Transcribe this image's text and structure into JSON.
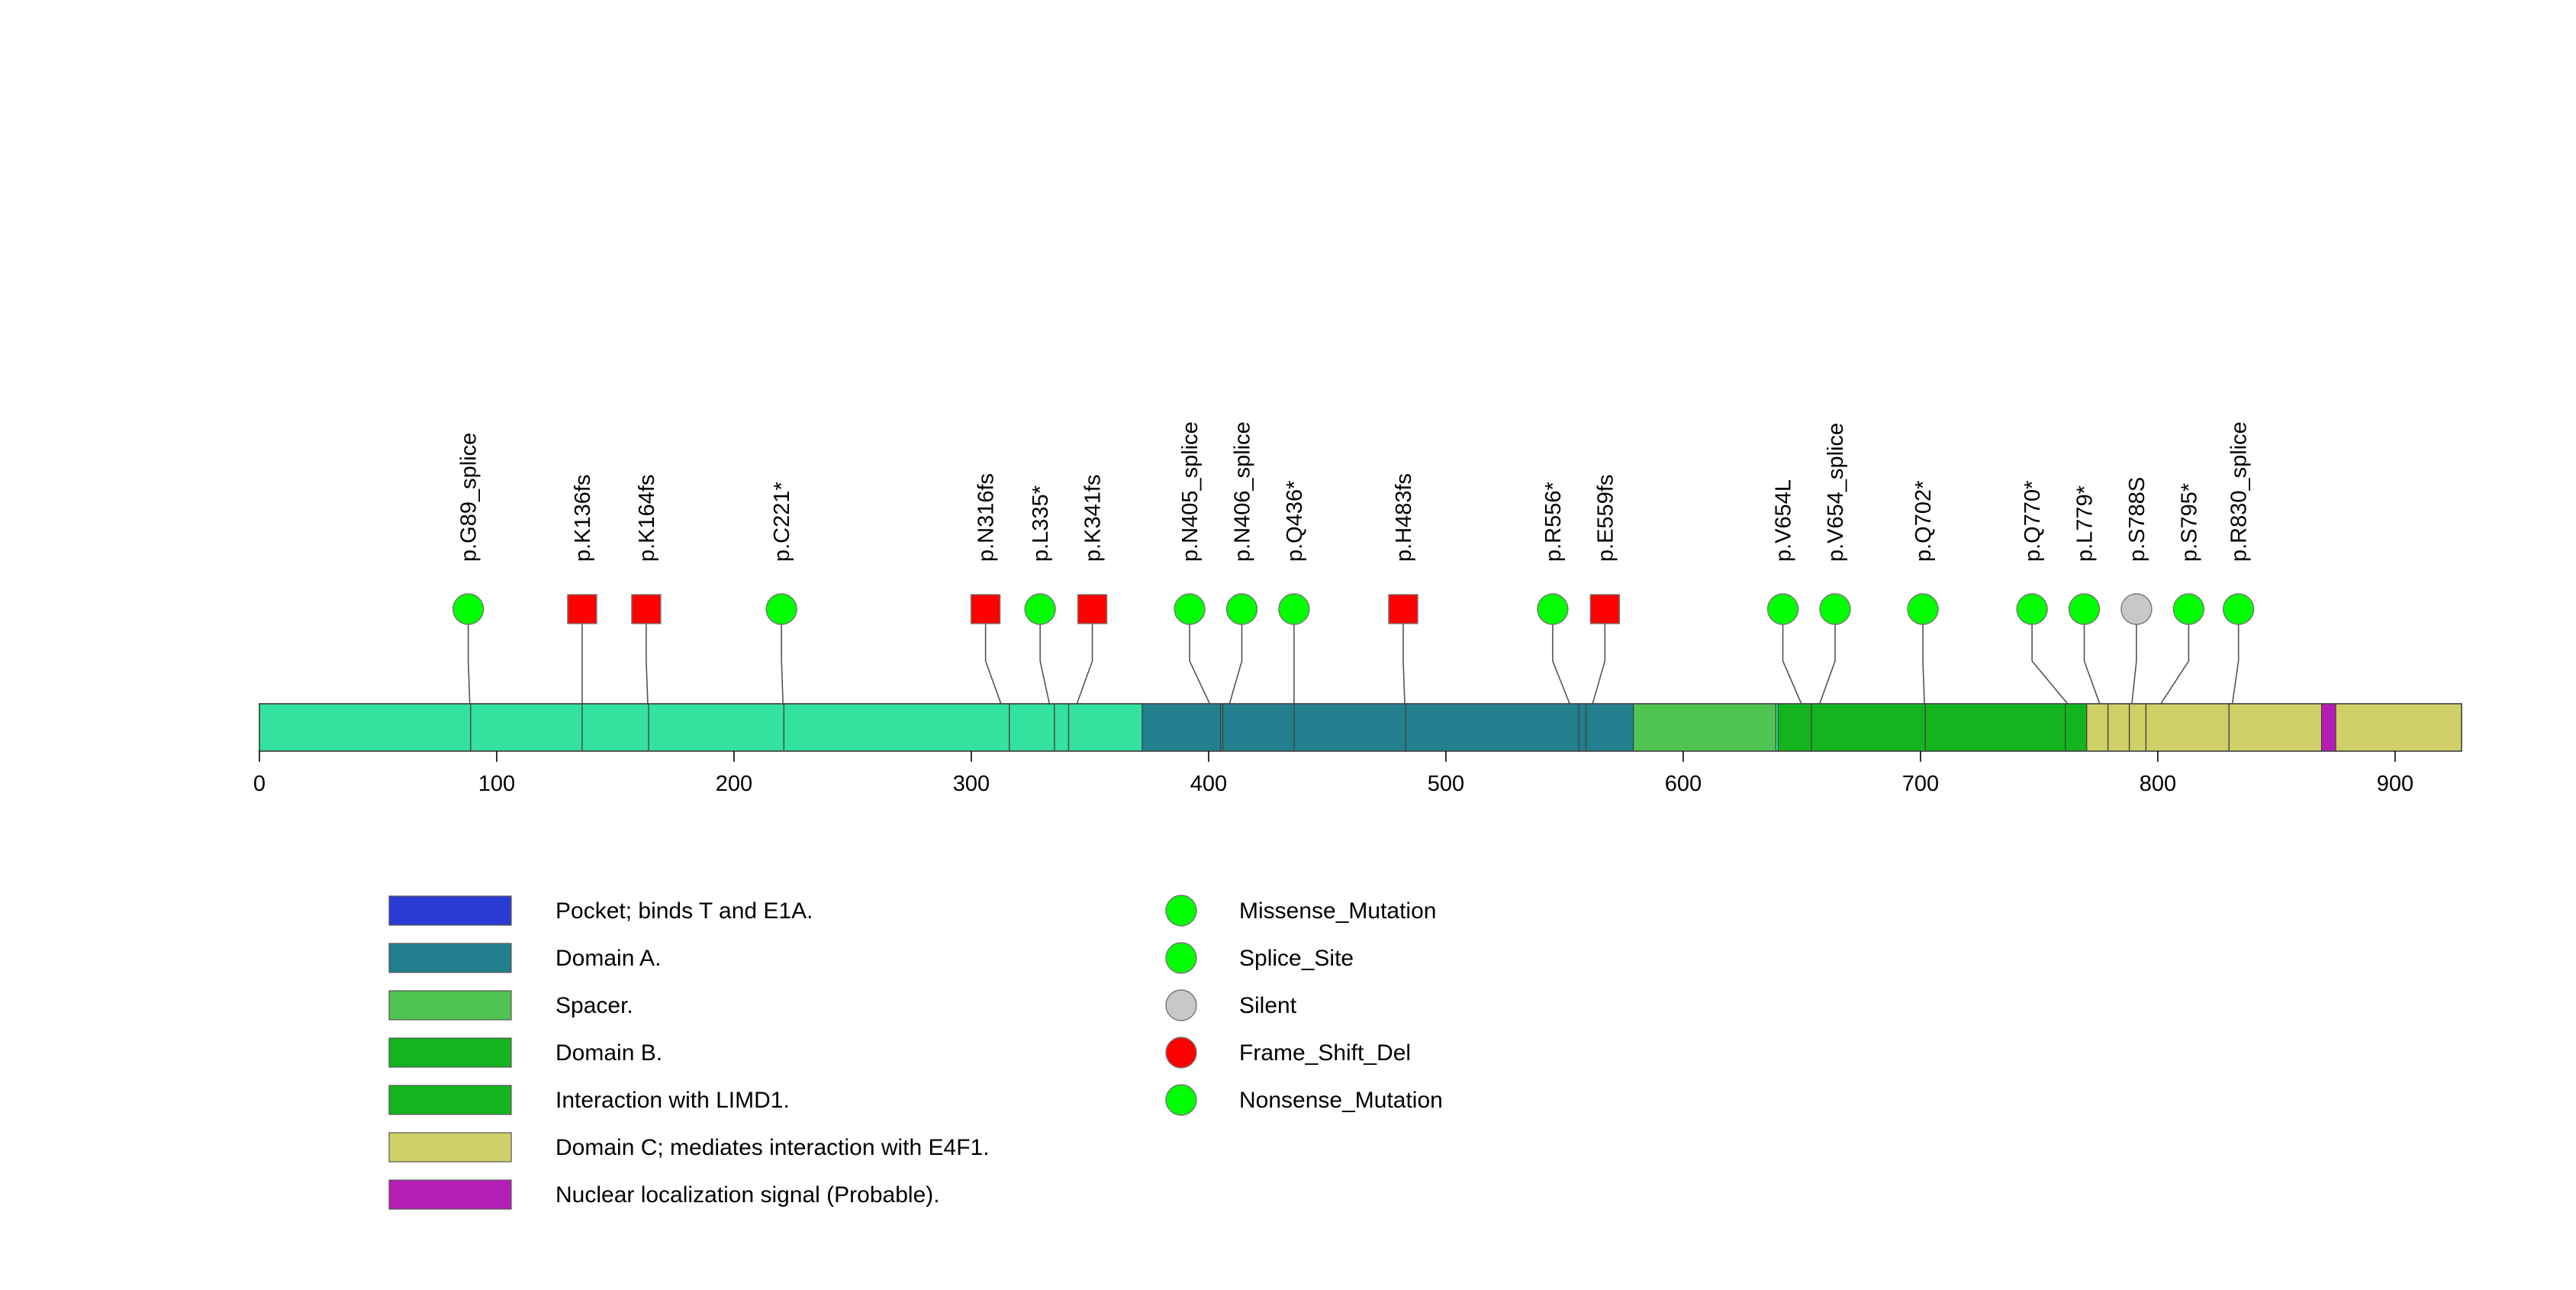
{
  "chart_data": {
    "type": "lollipop",
    "protein_length": 928,
    "x_range": [
      0,
      928
    ],
    "ticks": [
      0,
      100,
      200,
      300,
      400,
      500,
      600,
      700,
      800,
      900
    ],
    "track_color": "#33e29e",
    "domains": [
      {
        "name": "Pocket; binds T and E1A.",
        "start": 372,
        "end": 580,
        "color": "#2a3bd4",
        "show": false
      },
      {
        "name": "Domain A.",
        "start": 372,
        "end": 579,
        "color": "#22808e",
        "show": true
      },
      {
        "name": "Spacer.",
        "start": 579,
        "end": 639,
        "color": "#50c450",
        "show": true
      },
      {
        "name": "Domain B.",
        "start": 640,
        "end": 768,
        "color": "#14b41e",
        "show": true
      },
      {
        "name": "Interaction with LIMD1.",
        "start": 761,
        "end": 770,
        "color": "#14b41e",
        "show": true
      },
      {
        "name": "Domain C; mediates interaction with E4F1.",
        "start": 770,
        "end": 928,
        "color": "#d0d068",
        "show": true
      },
      {
        "name": "Nuclear localization signal (Probable).",
        "start": 869,
        "end": 875,
        "color": "#b41eb4",
        "show": true
      }
    ],
    "mutation_types": [
      {
        "name": "Missense_Mutation",
        "color": "#00ff00",
        "shape": "circle"
      },
      {
        "name": "Splice_Site",
        "color": "#00ff00",
        "shape": "circle"
      },
      {
        "name": "Silent",
        "color": "#c8c8c8",
        "shape": "circle"
      },
      {
        "name": "Frame_Shift_Del",
        "color": "#ff0000",
        "shape": "circle"
      },
      {
        "name": "Nonsense_Mutation",
        "color": "#00ff00",
        "shape": "circle"
      }
    ],
    "mutations": [
      {
        "label": "p.G89_splice",
        "position": 89,
        "marker_position": 88,
        "type": "Splice_Site",
        "shape": "circle"
      },
      {
        "label": "p.K136fs",
        "position": 136,
        "marker_position": 136,
        "type": "Frame_Shift_Del",
        "shape": "square"
      },
      {
        "label": "p.K164fs",
        "position": 164,
        "marker_position": 163,
        "type": "Frame_Shift_Del",
        "shape": "square"
      },
      {
        "label": "p.C221*",
        "position": 221,
        "marker_position": 220,
        "type": "Nonsense_Mutation",
        "shape": "circle"
      },
      {
        "label": "p.N316fs",
        "position": 316,
        "marker_position": 306,
        "type": "Frame_Shift_Del",
        "shape": "square"
      },
      {
        "label": "p.L335*",
        "position": 335,
        "marker_position": 329,
        "type": "Nonsense_Mutation",
        "shape": "circle"
      },
      {
        "label": "p.K341fs",
        "position": 341,
        "marker_position": 351,
        "type": "Frame_Shift_Del",
        "shape": "square"
      },
      {
        "label": "p.N405_splice",
        "position": 405,
        "marker_position": 392,
        "type": "Splice_Site",
        "shape": "circle"
      },
      {
        "label": "p.N406_splice",
        "position": 406,
        "marker_position": 414,
        "type": "Splice_Site",
        "shape": "circle"
      },
      {
        "label": "p.Q436*",
        "position": 436,
        "marker_position": 436,
        "type": "Nonsense_Mutation",
        "shape": "circle"
      },
      {
        "label": "p.H483fs",
        "position": 483,
        "marker_position": 482,
        "type": "Frame_Shift_Del",
        "shape": "square"
      },
      {
        "label": "p.R556*",
        "position": 556,
        "marker_position": 545,
        "type": "Nonsense_Mutation",
        "shape": "circle"
      },
      {
        "label": "p.E559fs",
        "position": 559,
        "marker_position": 567,
        "type": "Frame_Shift_Del",
        "shape": "square"
      },
      {
        "label": "p.V654L",
        "position": 654,
        "marker_position": 642,
        "type": "Missense_Mutation",
        "shape": "circle"
      },
      {
        "label": "p.V654_splice",
        "position": 654,
        "marker_position": 664,
        "type": "Splice_Site",
        "shape": "circle"
      },
      {
        "label": "p.Q702*",
        "position": 702,
        "marker_position": 701,
        "type": "Nonsense_Mutation",
        "shape": "circle"
      },
      {
        "label": "p.Q770*",
        "position": 770,
        "marker_position": 747,
        "type": "Nonsense_Mutation",
        "shape": "circle"
      },
      {
        "label": "p.L779*",
        "position": 779,
        "marker_position": 769,
        "type": "Nonsense_Mutation",
        "shape": "circle"
      },
      {
        "label": "p.S788S",
        "position": 788,
        "marker_position": 791,
        "type": "Silent",
        "shape": "circle"
      },
      {
        "label": "p.S795*",
        "position": 795,
        "marker_position": 813,
        "type": "Nonsense_Mutation",
        "shape": "circle"
      },
      {
        "label": "p.R830_splice",
        "position": 830,
        "marker_position": 834,
        "type": "Splice_Site",
        "shape": "circle"
      }
    ]
  }
}
